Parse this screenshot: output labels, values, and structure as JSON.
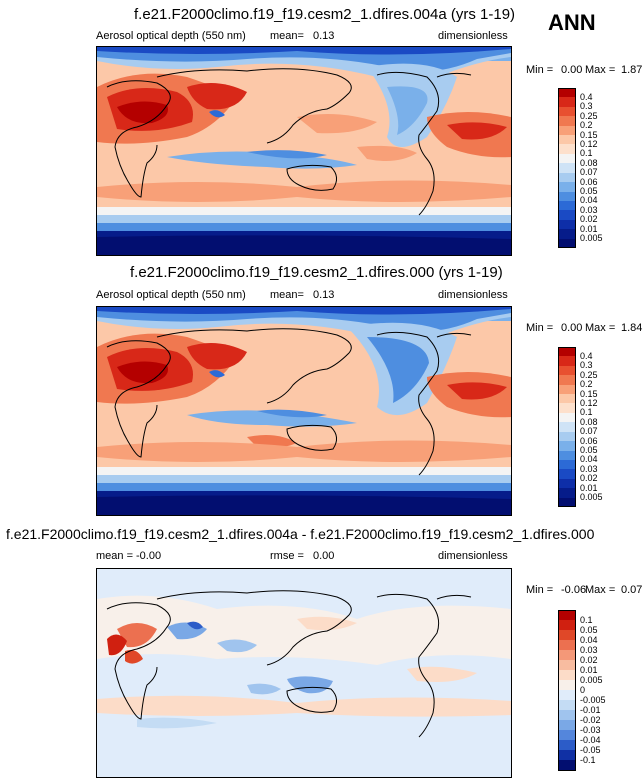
{
  "badge": "ANN",
  "panels": [
    {
      "title": "f.e21.F2000climo.f19_f19.cesm2_1.dfires.004a (yrs 1-19)",
      "left_label": "Aerosol optical depth (550 nm)",
      "stat_label": "mean=",
      "stat_value": "0.13",
      "units": "dimensionless",
      "min_label": "Min =",
      "min_value": "0.00",
      "max_label": "Max =",
      "max_value": "1.87"
    },
    {
      "title": "f.e21.F2000climo.f19_f19.cesm2_1.dfires.000 (yrs 1-19)",
      "left_label": "Aerosol optical depth (550 nm)",
      "stat_label": "mean=",
      "stat_value": "0.13",
      "units": "dimensionless",
      "min_label": "Min =",
      "min_value": "0.00",
      "max_label": "Max =",
      "max_value": "1.84"
    },
    {
      "title": "f.e21.F2000climo.f19_f19.cesm2_1.dfires.004a - f.e21.F2000climo.f19_f19.cesm2_1.dfires.000",
      "left_label": "mean =",
      "left_value": "-0.00",
      "stat_label": "rmse =",
      "stat_value": "0.00",
      "units": "dimensionless",
      "min_label": "Min =",
      "min_value": "-0.06",
      "max_label": "Max =",
      "max_value": "0.07"
    }
  ],
  "chart_data": [
    {
      "type": "heatmap",
      "title": "f.e21.F2000climo.f19_f19.cesm2_1.dfires.004a (yrs 1-19)",
      "variable": "Aerosol optical depth (550 nm)",
      "units": "dimensionless",
      "mean": 0.13,
      "min": 0.0,
      "max": 1.87,
      "colorbar_levels": [
        "0.4",
        "0.3",
        "0.25",
        "0.2",
        "0.15",
        "0.12",
        "0.1",
        "0.08",
        "0.07",
        "0.06",
        "0.05",
        "0.04",
        "0.03",
        "0.02",
        "0.01",
        "0.005"
      ],
      "colors": [
        "#b40000",
        "#d82818",
        "#e85030",
        "#f07850",
        "#f8a078",
        "#fcc8a8",
        "#fde0cc",
        "#f4f4f4",
        "#cfe3f6",
        "#a8ccf0",
        "#7ab0ea",
        "#4e8ee0",
        "#2c6ad6",
        "#1a4ac4",
        "#0e2ea8",
        "#061c8a",
        "#020e70"
      ]
    },
    {
      "type": "heatmap",
      "title": "f.e21.F2000climo.f19_f19.cesm2_1.dfires.000 (yrs 1-19)",
      "variable": "Aerosol optical depth (550 nm)",
      "units": "dimensionless",
      "mean": 0.13,
      "min": 0.0,
      "max": 1.84,
      "colorbar_levels": [
        "0.4",
        "0.3",
        "0.25",
        "0.2",
        "0.15",
        "0.12",
        "0.1",
        "0.08",
        "0.07",
        "0.06",
        "0.05",
        "0.04",
        "0.03",
        "0.02",
        "0.01",
        "0.005"
      ],
      "colors": [
        "#b40000",
        "#d82818",
        "#e85030",
        "#f07850",
        "#f8a078",
        "#fcc8a8",
        "#fde0cc",
        "#f4f4f4",
        "#cfe3f6",
        "#a8ccf0",
        "#7ab0ea",
        "#4e8ee0",
        "#2c6ad6",
        "#1a4ac4",
        "#0e2ea8",
        "#061c8a",
        "#020e70"
      ]
    },
    {
      "type": "heatmap",
      "title": "f.e21.F2000climo.f19_f19.cesm2_1.dfires.004a - f.e21.F2000climo.f19_f19.cesm2_1.dfires.000",
      "units": "dimensionless",
      "mean": -0.0,
      "rmse": 0.0,
      "min": -0.06,
      "max": 0.07,
      "colorbar_levels": [
        "0.1",
        "0.05",
        "0.04",
        "0.03",
        "0.02",
        "0.01",
        "0.005",
        "0",
        "-0.005",
        "-0.01",
        "-0.02",
        "-0.03",
        "-0.04",
        "-0.05",
        "-0.1"
      ],
      "colors": [
        "#b40000",
        "#d02010",
        "#e04828",
        "#ec7050",
        "#f49878",
        "#f8bca0",
        "#fcdcc8",
        "#f8f0ea",
        "#e0ecfa",
        "#c4dcf4",
        "#a0c4ee",
        "#7aa8e6",
        "#5486dc",
        "#2c5cc8",
        "#1030a4",
        "#020e70"
      ]
    }
  ]
}
